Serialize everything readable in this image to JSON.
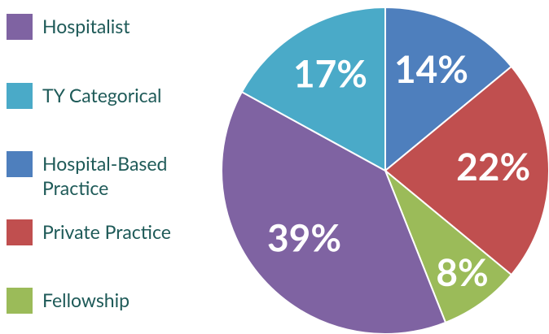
{
  "chart_data": {
    "type": "pie",
    "categories": [
      "Hospitalist",
      "TY Categorical",
      "Hospital-Based Practice",
      "Private Practice",
      "Fellowship"
    ],
    "values": [
      39,
      17,
      14,
      22,
      8
    ],
    "value_labels": [
      "39%",
      "17%",
      "14%",
      "22%",
      "8%"
    ],
    "colors": [
      "#7f63a2",
      "#4aaac8",
      "#4e7fbd",
      "#c04f4f",
      "#9bbb59"
    ],
    "legend": "left"
  }
}
